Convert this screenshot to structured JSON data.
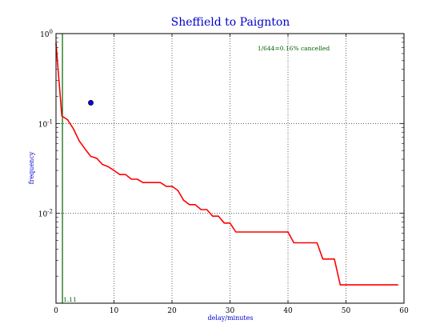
{
  "chart_data": {
    "type": "line",
    "title": "Sheffield to Paignton",
    "xlabel": "delay/minutes",
    "ylabel": "frequency",
    "xlim": [
      0,
      60
    ],
    "ylim": [
      0.001,
      1
    ],
    "yscale": "log",
    "grid": true,
    "x_ticks": [
      0,
      10,
      20,
      30,
      40,
      50,
      60
    ],
    "x_tick_labels": [
      "0",
      "10",
      "20",
      "30",
      "40",
      "50",
      "60"
    ],
    "y_ticks": [
      1,
      0.1,
      0.01
    ],
    "y_tick_labels": [
      {
        "base": "10",
        "exp": "0"
      },
      {
        "base": "10",
        "exp": "-1"
      },
      {
        "base": "10",
        "exp": "-2"
      }
    ],
    "annotation": "1/644=0.16% cancelled",
    "mean_line": {
      "x": 1.11,
      "label": "1.11"
    },
    "point": {
      "x": 6,
      "y": 0.17
    },
    "series": [
      {
        "color": "#ff0000",
        "x": [
          0,
          1,
          2,
          3,
          4,
          5,
          6,
          7,
          8,
          9,
          10,
          11,
          12,
          13,
          14,
          15,
          16,
          17,
          18,
          19,
          20,
          21,
          22,
          23,
          24,
          25,
          26,
          27,
          28,
          29,
          30,
          31,
          32,
          33,
          34,
          35,
          36,
          37,
          38,
          39,
          40,
          41,
          42,
          43,
          44,
          45,
          46,
          47,
          48,
          49,
          50,
          51,
          52,
          53,
          54,
          55,
          56,
          57,
          58,
          59
        ],
        "y": [
          0.78,
          0.121,
          0.11,
          0.087,
          0.064,
          0.052,
          0.043,
          0.041,
          0.035,
          0.033,
          0.03,
          0.027,
          0.027,
          0.024,
          0.024,
          0.022,
          0.022,
          0.022,
          0.022,
          0.02,
          0.02,
          0.018,
          0.014,
          0.0125,
          0.0125,
          0.011,
          0.011,
          0.0093,
          0.0093,
          0.0078,
          0.0078,
          0.0062,
          0.0062,
          0.0062,
          0.0062,
          0.0062,
          0.0062,
          0.0062,
          0.0062,
          0.0062,
          0.0062,
          0.0047,
          0.0047,
          0.0047,
          0.0047,
          0.0047,
          0.0031,
          0.0031,
          0.0031,
          0.0016,
          0.0016,
          0.0016,
          0.0016,
          0.0016,
          0.0016,
          0.0016,
          0.0016,
          0.0016,
          0.0016,
          0.0016
        ]
      }
    ],
    "colors": {
      "line": "#ff0000",
      "mean_line": "#006400",
      "point_fill": "#0000ff",
      "title": "#0000cc",
      "axis_label": "#0000cc",
      "annotation": "#006400"
    }
  }
}
